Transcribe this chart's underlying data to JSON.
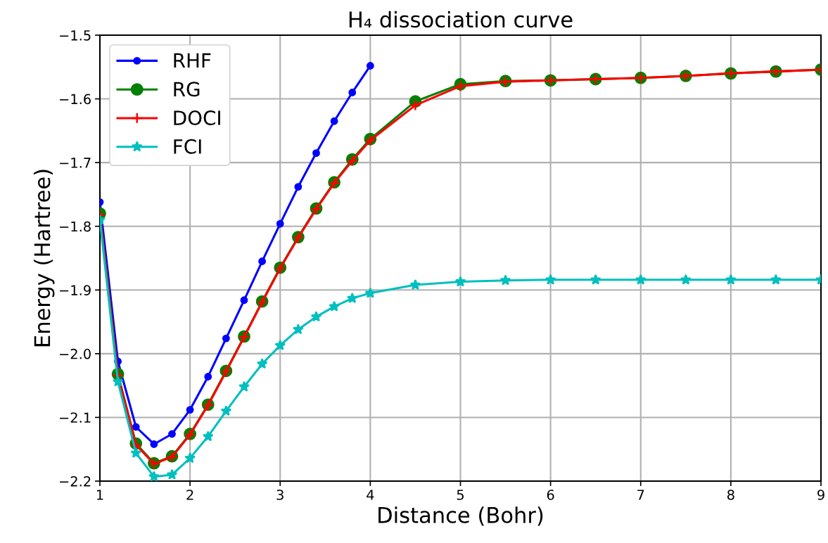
{
  "chart_data": {
    "type": "line",
    "title": "H₄ dissociation curve",
    "xlabel": "Distance (Bohr)",
    "ylabel": "Energy (Hartree)",
    "x": [
      1.0,
      1.2,
      1.4,
      1.6,
      1.8,
      2.0,
      2.2,
      2.4,
      2.6,
      2.8,
      3.0,
      3.2,
      3.4,
      3.6,
      3.8,
      4.0,
      4.5,
      5.0,
      5.5,
      6.0,
      6.5,
      7.0,
      7.5,
      8.0,
      8.5,
      9.0
    ],
    "series": [
      {
        "name": "RHF",
        "color": "#0000ff",
        "marker": "circle",
        "values": [
          -1.762,
          -2.012,
          -2.115,
          -2.142,
          -2.126,
          -2.088,
          -2.036,
          -1.976,
          -1.916,
          -1.855,
          -1.796,
          -1.738,
          -1.685,
          -1.635,
          -1.59,
          -1.548,
          null,
          null,
          null,
          null,
          null,
          null,
          null,
          null,
          null,
          null
        ]
      },
      {
        "name": "RG",
        "color": "#008000",
        "marker": "circle",
        "values": [
          -1.78,
          -2.032,
          -2.141,
          -2.172,
          -2.161,
          -2.126,
          -2.08,
          -2.027,
          -1.973,
          -1.918,
          -1.865,
          -1.817,
          -1.772,
          -1.731,
          -1.695,
          -1.663,
          -1.604,
          -1.577,
          -1.572,
          -1.571,
          -1.569,
          -1.567,
          -1.564,
          -1.56,
          -1.557,
          -1.554
        ]
      },
      {
        "name": "DOCI",
        "color": "#ff0000",
        "marker": "cross",
        "values": [
          -1.782,
          -2.034,
          -2.143,
          -2.173,
          -2.162,
          -2.127,
          -2.081,
          -2.028,
          -1.974,
          -1.919,
          -1.866,
          -1.818,
          -1.773,
          -1.732,
          -1.697,
          -1.665,
          -1.61,
          -1.58,
          -1.573,
          -1.571,
          -1.569,
          -1.567,
          -1.564,
          -1.56,
          -1.557,
          -1.554
        ]
      },
      {
        "name": "FCI",
        "color": "#00bfbf",
        "marker": "star",
        "values": [
          -1.79,
          -2.044,
          -2.156,
          -2.193,
          -2.19,
          -2.164,
          -2.13,
          -2.09,
          -2.052,
          -2.016,
          -1.987,
          -1.962,
          -1.942,
          -1.926,
          -1.913,
          -1.905,
          -1.892,
          -1.887,
          -1.885,
          -1.884,
          -1.884,
          -1.884,
          -1.884,
          -1.884,
          -1.884,
          -1.884
        ]
      }
    ],
    "xlim": [
      1,
      9
    ],
    "xticks": [
      1,
      2,
      3,
      4,
      5,
      6,
      7,
      8,
      9
    ],
    "ylim": [
      -2.2,
      -1.5
    ],
    "yticks": [
      {
        "value": -2.2,
        "label": "−2.2"
      },
      {
        "value": -2.1,
        "label": "−2.1"
      },
      {
        "value": -2.0,
        "label": "−2.0"
      },
      {
        "value": -1.9,
        "label": "−1.9"
      },
      {
        "value": -1.8,
        "label": "−1.8"
      },
      {
        "value": -1.7,
        "label": "−1.7"
      },
      {
        "value": -1.6,
        "label": "−1.6"
      },
      {
        "value": -1.5,
        "label": "−1.5"
      }
    ],
    "grid": true,
    "legend": "top left",
    "line_style": "solid"
  }
}
